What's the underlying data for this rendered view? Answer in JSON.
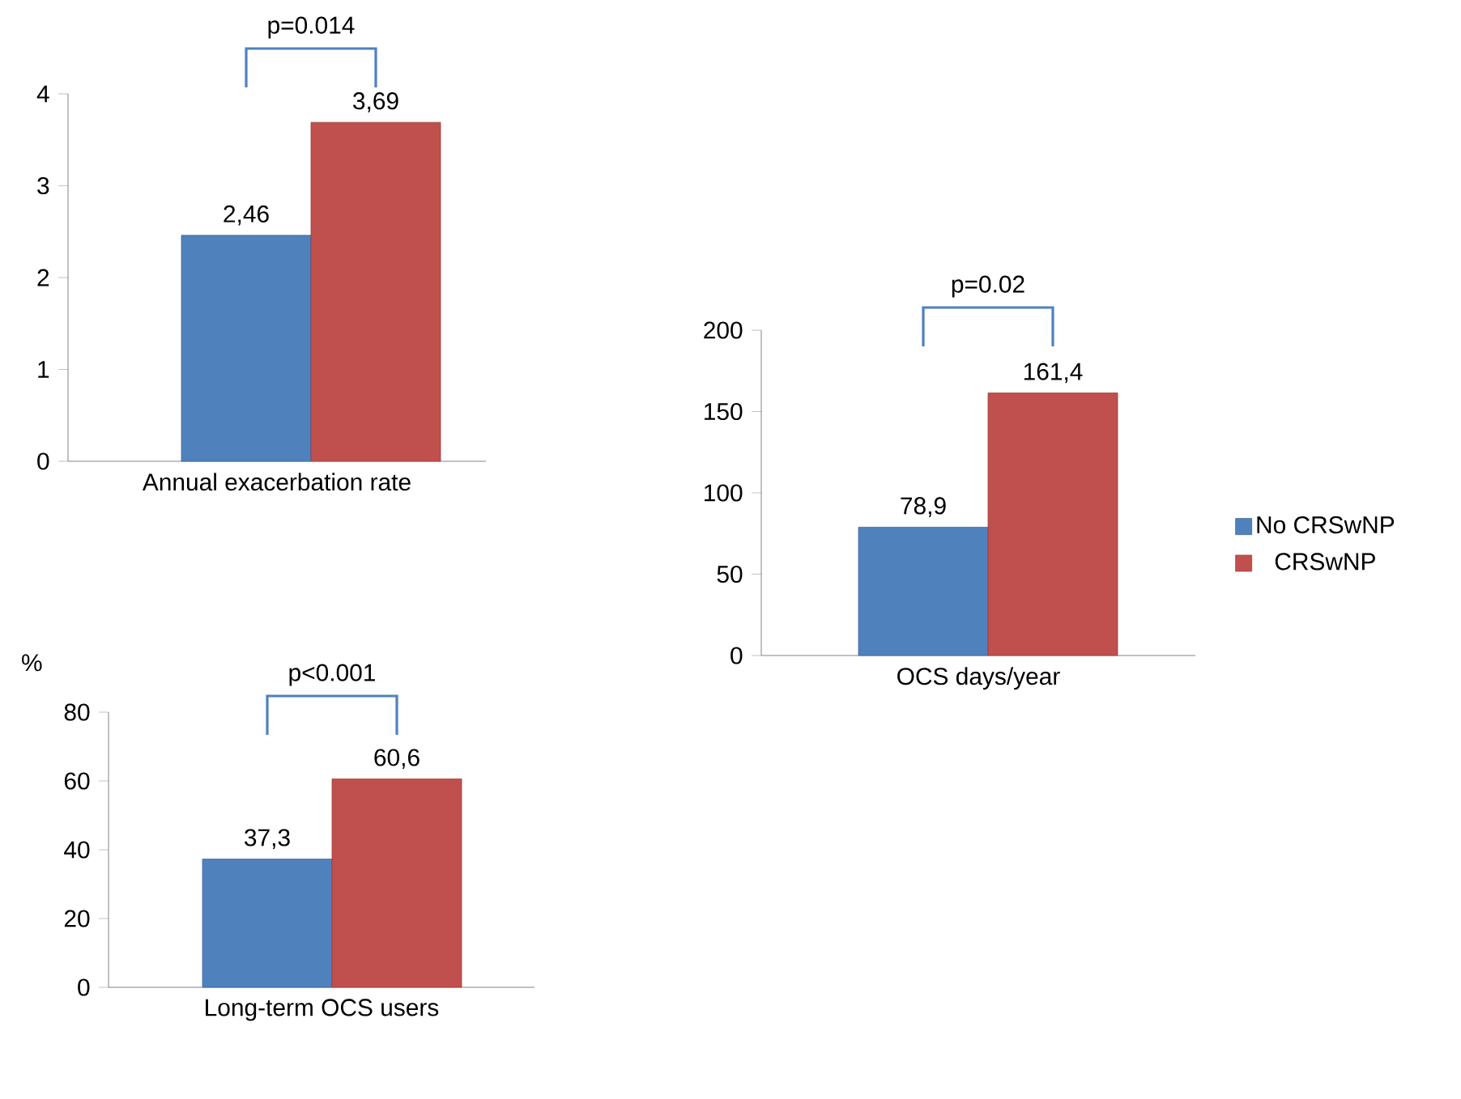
{
  "chart_data": [
    {
      "type": "bar",
      "xlabel": "Annual exacerbation rate",
      "categories": [
        null
      ],
      "ylim": [
        0,
        4
      ],
      "yticks": [
        0,
        1,
        2,
        3,
        4
      ],
      "annotations": [
        "p=0.014"
      ],
      "series": [
        {
          "color": "#4f81bd",
          "values": [
            2.46
          ],
          "value_labels": [
            "2,46"
          ]
        },
        {
          "color": "#c0504d",
          "values": [
            3.69
          ],
          "value_labels": [
            "3,69"
          ]
        }
      ]
    },
    {
      "type": "bar",
      "xlabel": "OCS days/year",
      "categories": [
        null
      ],
      "ylim": [
        0,
        200
      ],
      "yticks": [
        0,
        50,
        100,
        150,
        200
      ],
      "annotations": [
        "p=0.02"
      ],
      "legend": "right",
      "series": [
        {
          "name": "No CRSwNP",
          "color": "#4f81bd",
          "values": [
            78.9
          ],
          "value_labels": [
            "78,9"
          ]
        },
        {
          "name": "CRSwNP",
          "color": "#c0504d",
          "values": [
            161.4
          ],
          "value_labels": [
            "161,4"
          ]
        }
      ]
    },
    {
      "type": "bar",
      "xlabel": "Long-term OCS users",
      "ylabel": "%",
      "categories": [
        null
      ],
      "ylim": [
        0,
        80
      ],
      "yticks": [
        0,
        20,
        40,
        60,
        80
      ],
      "annotations": [
        "p<0.001"
      ],
      "series": [
        {
          "color": "#4f81bd",
          "values": [
            37.3
          ],
          "value_labels": [
            "37,3"
          ]
        },
        {
          "color": "#c0504d",
          "values": [
            60.6
          ],
          "value_labels": [
            "60,6"
          ]
        }
      ]
    }
  ]
}
